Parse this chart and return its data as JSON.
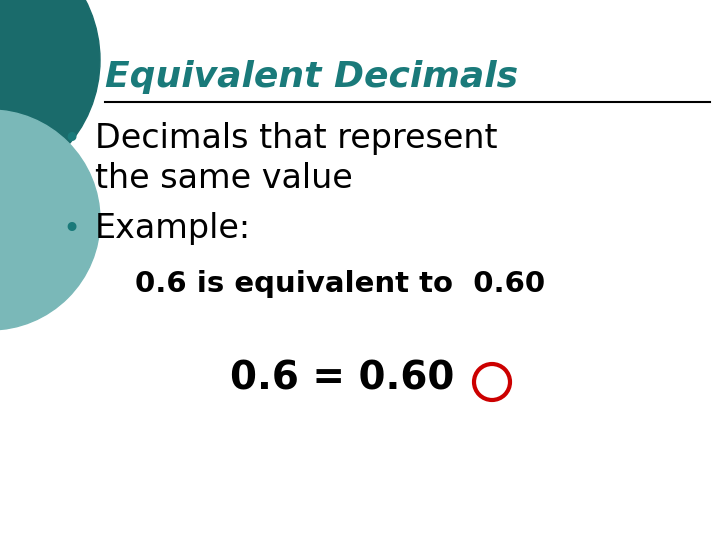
{
  "slide_bg": "#ffffff",
  "title_text": "Equivalent Decimals",
  "title_color": "#1a7a7a",
  "title_underline_color": "#000000",
  "bullet1_line1": "Decimals that represent",
  "bullet1_line2": "the same value",
  "bullet2": "Example:",
  "text_color": "#000000",
  "bullet_color": "#1a7a7a",
  "circle_color": "#cc0000",
  "deco_large_color": "#1a6b6b",
  "deco_small_color": "#7ab8b8",
  "title_fontsize": 26,
  "body_fontsize": 24,
  "example_fontsize": 21,
  "equation_fontsize": 28
}
